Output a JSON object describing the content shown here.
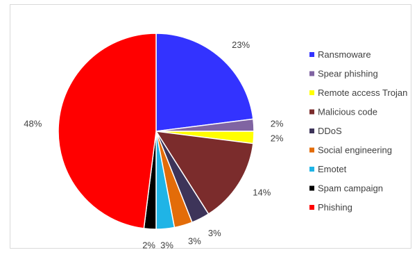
{
  "chart_data": {
    "type": "pie",
    "start_angle_deg": 0,
    "direction": "clockwise",
    "legend_position": "right",
    "slices": [
      {
        "label": "Ransmoware",
        "value": 23,
        "display": "23%",
        "color": "#3333ff"
      },
      {
        "label": "Spear phishing",
        "value": 2,
        "display": "2%",
        "color": "#8064a2"
      },
      {
        "label": "Remote access Trojan",
        "value": 2,
        "display": "2%",
        "color": "#ffff00"
      },
      {
        "label": "Malicious code",
        "value": 14,
        "display": "14%",
        "color": "#7b2c2c"
      },
      {
        "label": "DDoS",
        "value": 3,
        "display": "3%",
        "color": "#3d3459"
      },
      {
        "label": "Social engineering",
        "value": 3,
        "display": "3%",
        "color": "#e36c09"
      },
      {
        "label": "Emotet",
        "value": 3,
        "display": "3%",
        "color": "#1fb4e6"
      },
      {
        "label": "Spam campaign",
        "value": 2,
        "display": "2%",
        "color": "#000000"
      },
      {
        "label": "Phishing",
        "value": 48,
        "display": "48%",
        "color": "#ff0000"
      }
    ]
  }
}
